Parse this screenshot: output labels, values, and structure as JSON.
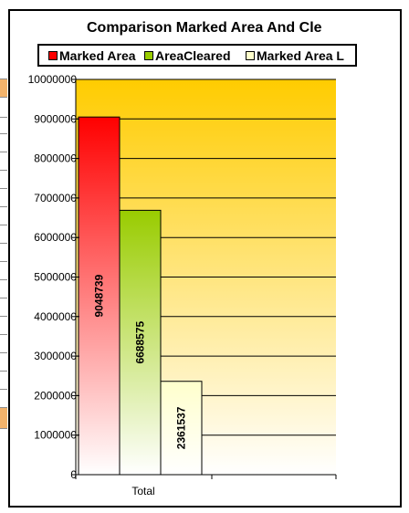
{
  "chart_data": {
    "type": "bar",
    "title": "Comparison Marked Area And Cle",
    "categories": [
      "Total"
    ],
    "series": [
      {
        "name": "Marked Area",
        "values": [
          9048739
        ],
        "color": "#ff0000"
      },
      {
        "name": "AreaCleared",
        "values": [
          6688575
        ],
        "color": "#99cc00"
      },
      {
        "name": "Marked Area L",
        "values": [
          2361537
        ],
        "color": "#ffffcc"
      }
    ],
    "ylim": [
      0,
      10000000
    ],
    "yticks": [
      0,
      1000000,
      2000000,
      3000000,
      4000000,
      5000000,
      6000000,
      7000000,
      8000000,
      9000000,
      10000000
    ],
    "ytick_labels": [
      "0",
      "1000000",
      "2000000",
      "3000000",
      "4000000",
      "5000000",
      "6000000",
      "7000000",
      "8000000",
      "9000000",
      "10000000"
    ],
    "data_labels": [
      "9048739",
      "6688575",
      "2361537"
    ],
    "legend_labels": [
      "Marked Area",
      "AreaCleared",
      "Marked Area L"
    ],
    "grid": true,
    "legend_position": "top",
    "plot_background": [
      "#ffcc00",
      "#ffffff"
    ]
  }
}
